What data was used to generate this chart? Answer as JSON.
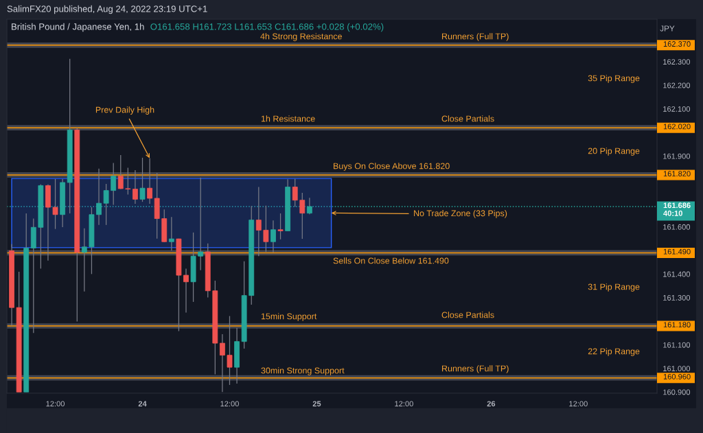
{
  "chart_data": {
    "type": "candlestick",
    "title": "British Pound / Japanese Yen, 1h",
    "subtitle": "O161.658 H161.723 L161.653 C161.686 +0.028 (+0.02%)",
    "ylabel": "JPY",
    "x": [
      "2022-08-23T06:00",
      "2022-08-23T07:00",
      "2022-08-23T08:00",
      "2022-08-23T09:00",
      "2022-08-23T10:00",
      "2022-08-23T11:00",
      "2022-08-23T12:00",
      "2022-08-23T13:00",
      "2022-08-23T14:00",
      "2022-08-23T15:00",
      "2022-08-23T16:00",
      "2022-08-23T17:00",
      "2022-08-23T18:00",
      "2022-08-23T19:00",
      "2022-08-23T20:00",
      "2022-08-23T21:00",
      "2022-08-23T22:00",
      "2022-08-23T23:00",
      "2022-08-24T00:00",
      "2022-08-24T01:00",
      "2022-08-24T02:00",
      "2022-08-24T03:00",
      "2022-08-24T04:00",
      "2022-08-24T05:00",
      "2022-08-24T06:00",
      "2022-08-24T07:00",
      "2022-08-24T08:00",
      "2022-08-24T09:00",
      "2022-08-24T10:00",
      "2022-08-24T11:00",
      "2022-08-24T12:00",
      "2022-08-24T13:00",
      "2022-08-24T14:00",
      "2022-08-24T15:00",
      "2022-08-24T16:00",
      "2022-08-24T17:00",
      "2022-08-24T18:00",
      "2022-08-24T19:00",
      "2022-08-24T20:00",
      "2022-08-24T21:00",
      "2022-08-24T22:00",
      "2022-08-24T23:00"
    ],
    "ohlc": [
      [
        161.499,
        161.527,
        161.181,
        161.258
      ],
      [
        161.258,
        161.41,
        160.9,
        160.9
      ],
      [
        160.9,
        161.657,
        160.9,
        161.51
      ],
      [
        161.51,
        161.635,
        161.15,
        161.598
      ],
      [
        161.598,
        161.78,
        161.423,
        161.775
      ],
      [
        161.775,
        161.78,
        161.457,
        161.683
      ],
      [
        161.683,
        161.803,
        161.591,
        161.652
      ],
      [
        161.652,
        161.803,
        161.599,
        161.788
      ],
      [
        161.788,
        162.312,
        161.657,
        162.011
      ],
      [
        162.011,
        162.019,
        161.199,
        161.492
      ],
      [
        161.492,
        161.594,
        161.326,
        161.515
      ],
      [
        161.515,
        161.683,
        161.4,
        161.652
      ],
      [
        161.652,
        161.847,
        161.608,
        161.7
      ],
      [
        161.7,
        161.782,
        161.608,
        161.754
      ],
      [
        161.754,
        161.871,
        161.693,
        161.815
      ],
      [
        161.815,
        161.904,
        161.76,
        161.762
      ],
      [
        161.762,
        161.85,
        161.737,
        161.76
      ],
      [
        161.76,
        161.84,
        161.698,
        161.717
      ],
      [
        161.717,
        161.893,
        161.706,
        161.764
      ],
      [
        161.764,
        161.891,
        161.698,
        161.721
      ],
      [
        161.721,
        161.828,
        161.55,
        161.635
      ],
      [
        161.635,
        161.674,
        161.535,
        161.537
      ],
      [
        161.537,
        161.642,
        161.499,
        161.549
      ],
      [
        161.549,
        161.55,
        161.158,
        161.395
      ],
      [
        161.395,
        161.423,
        161.237,
        161.367
      ],
      [
        161.367,
        161.576,
        161.282,
        161.476
      ],
      [
        161.476,
        161.808,
        161.416,
        161.494
      ],
      [
        161.494,
        161.53,
        161.301,
        161.329
      ],
      [
        161.329,
        161.372,
        160.975,
        161.107
      ],
      [
        161.107,
        161.145,
        160.9,
        161.056
      ],
      [
        161.056,
        161.222,
        160.93,
        161.005
      ],
      [
        161.005,
        161.172,
        160.936,
        161.114
      ],
      [
        161.114,
        161.454,
        161.084,
        161.309
      ],
      [
        161.309,
        161.688,
        161.27,
        161.629
      ],
      [
        161.629,
        161.769,
        161.476,
        161.586
      ],
      [
        161.586,
        161.69,
        161.494,
        161.537
      ],
      [
        161.537,
        161.627,
        161.492,
        161.588
      ],
      [
        161.588,
        161.657,
        161.547,
        161.583
      ],
      [
        161.583,
        161.802,
        161.583,
        161.769
      ],
      [
        161.769,
        161.804,
        161.685,
        161.713
      ],
      [
        161.713,
        161.744,
        161.549,
        161.658
      ],
      [
        161.658,
        161.723,
        161.653,
        161.686
      ]
    ],
    "colors": [
      "#ef5350",
      "#ef5350",
      "#26a69a",
      "#26a69a",
      "#26a69a",
      "#ef5350",
      "#ef5350",
      "#26a69a",
      "#26a69a",
      "#ef5350",
      "#26a69a",
      "#26a69a",
      "#26a69a",
      "#26a69a",
      "#26a69a",
      "#ef5350",
      "#ef5350",
      "#ef5350",
      "#26a69a",
      "#ef5350",
      "#ef5350",
      "#ef5350",
      "#26a69a",
      "#ef5350",
      "#ef5350",
      "#26a69a",
      "#26a69a",
      "#ef5350",
      "#ef5350",
      "#ef5350",
      "#ef5350",
      "#26a69a",
      "#26a69a",
      "#26a69a",
      "#ef5350",
      "#ef5350",
      "#26a69a",
      "#ef5350",
      "#26a69a",
      "#ef5350",
      "#ef5350",
      "#26a69a"
    ],
    "xlim": [
      "2022-08-23T05:20",
      "2022-08-26T22:50"
    ],
    "xticks": [
      {
        "value": "2022-08-23T12:00",
        "label": "12:00"
      },
      {
        "value": "2022-08-24T00:00",
        "label": "24"
      },
      {
        "value": "2022-08-24T12:00",
        "label": "12:00"
      },
      {
        "value": "2022-08-25T00:00",
        "label": "25"
      },
      {
        "value": "2022-08-25T12:00",
        "label": "12:00"
      },
      {
        "value": "2022-08-26T00:00",
        "label": "26"
      },
      {
        "value": "2022-08-26T12:00",
        "label": "12:00"
      }
    ],
    "ylim": [
      160.895,
      162.48
    ],
    "yticks": [
      {
        "value": 160.9,
        "label": "160.900"
      },
      {
        "value": 161.0,
        "label": "161.000"
      },
      {
        "value": 161.1,
        "label": "161.100"
      },
      {
        "value": 161.3,
        "label": "161.300"
      },
      {
        "value": 161.4,
        "label": "161.400"
      },
      {
        "value": 161.6,
        "label": "161.600"
      },
      {
        "value": 161.9,
        "label": "161.900"
      },
      {
        "value": 162.1,
        "label": "162.100"
      },
      {
        "value": 162.2,
        "label": "162.200"
      },
      {
        "value": 162.3,
        "label": "162.300"
      }
    ],
    "ref_lines": [
      {
        "axis": "y",
        "value": 162.37,
        "label": "162.370",
        "color": "#ff9800",
        "line_style": "solid"
      },
      {
        "axis": "y",
        "value": 162.02,
        "label": "162.020",
        "color": "#ff9800",
        "line_style": "solid"
      },
      {
        "axis": "y",
        "value": 161.82,
        "label": "161.820",
        "color": "#ff9800",
        "line_style": "solid"
      },
      {
        "axis": "y",
        "value": 161.49,
        "label": "161.490",
        "color": "#ff9800",
        "line_style": "solid"
      },
      {
        "axis": "y",
        "value": 161.18,
        "label": "161.180",
        "color": "#ff9800",
        "line_style": "solid"
      },
      {
        "axis": "y",
        "value": 160.96,
        "label": "160.960",
        "color": "#ff9800",
        "line_style": "solid"
      },
      {
        "axis": "y",
        "value": 161.686,
        "label": "161.686\n40:10",
        "color": "#26a69a",
        "line_style": "dotted"
      }
    ],
    "bands": [
      {
        "axis": "y",
        "from": 161.512,
        "to": 161.805,
        "color": "#2962ff"
      }
    ],
    "annotations": [
      "SalimFX20 published, Aug 24, 2022 23:19 UTC+1",
      "4h Strong Resistance",
      "Runners (Full TP)",
      "35 Pip Range",
      "1h Resistance",
      "Close Partials",
      "20 Pip Range",
      "Buys On Close Above 161.820",
      "Sells On Close Below 161.490",
      "31 Pip Range",
      "15min Support",
      "Close Partials",
      "22 Pip Range",
      "30min Strong Support",
      "Runners (Full TP)",
      {
        "text": "Prev Daily High",
        "x": "2022-08-24T01:00",
        "y": 161.891
      },
      {
        "text": "No Trade Zone (33 Pips)",
        "x": "2022-08-25T02:00",
        "y": 161.6585
      }
    ]
  }
}
